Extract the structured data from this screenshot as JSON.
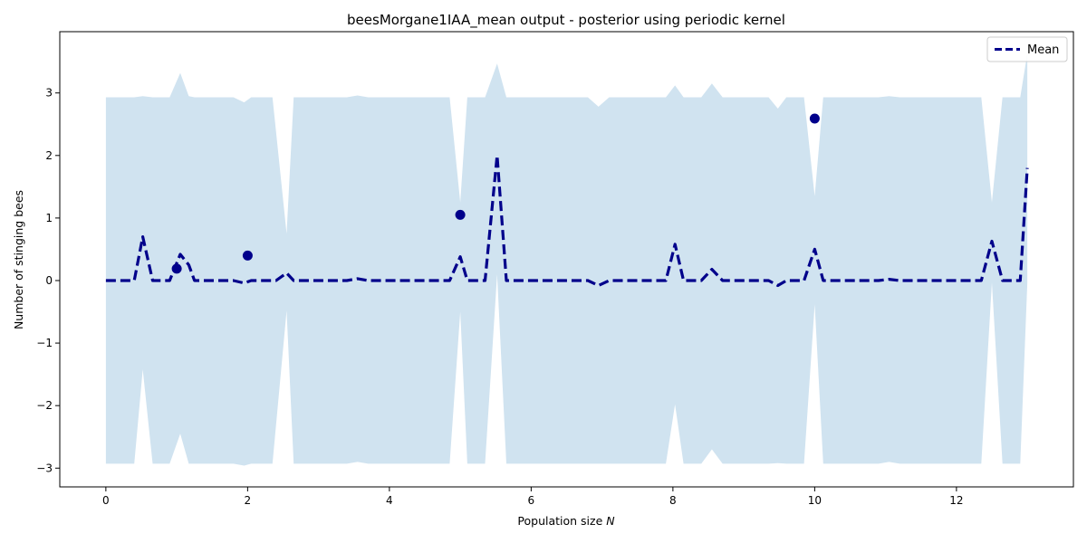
{
  "chart_data": {
    "type": "line",
    "title": "beesMorgane1IAA_mean output - posterior using periodic kernel",
    "xlabel_text": "Population size ",
    "xlabel_var": "N",
    "ylabel": "Number of stinging bees",
    "xlim": [
      -0.65,
      13.65
    ],
    "ylim": [
      -3.3,
      3.98
    ],
    "xticks": [
      0,
      2,
      4,
      6,
      8,
      10,
      12
    ],
    "yticks": [
      -3,
      -2,
      -1,
      0,
      1,
      2,
      3
    ],
    "grid": false,
    "legend_position": "top-right",
    "mean": {
      "name": "Mean",
      "color": "#00008b",
      "x": [
        0,
        0.4,
        0.52,
        0.66,
        0.9,
        1.05,
        1.17,
        1.25,
        1.8,
        1.95,
        2.05,
        2.4,
        2.55,
        2.65,
        3.4,
        3.55,
        3.7,
        4.85,
        5.0,
        5.1,
        5.35,
        5.52,
        5.65,
        6.8,
        6.95,
        7.1,
        7.9,
        8.03,
        8.15,
        8.4,
        8.55,
        8.7,
        9.35,
        9.48,
        9.6,
        9.85,
        10.0,
        10.12,
        10.9,
        11.05,
        11.2,
        12.35,
        12.5,
        12.65,
        12.9,
        13.0
      ],
      "y": [
        0,
        0,
        0.7,
        0,
        0,
        0.42,
        0.25,
        0,
        0,
        -0.04,
        0,
        0,
        0.12,
        0,
        0,
        0.03,
        0,
        0,
        0.38,
        0,
        0,
        2.0,
        0,
        0,
        -0.08,
        0,
        0,
        0.58,
        0,
        0,
        0.18,
        0,
        0,
        -0.08,
        0,
        0,
        0.5,
        0,
        0,
        0.02,
        0,
        0,
        0.63,
        0,
        0,
        1.8
      ]
    },
    "band": {
      "color": "#d0e3f0",
      "x": [
        0,
        0.4,
        0.52,
        0.66,
        0.9,
        1.05,
        1.17,
        1.25,
        1.8,
        1.95,
        2.05,
        2.35,
        2.55,
        2.65,
        3.4,
        3.55,
        3.7,
        4.85,
        5.0,
        5.1,
        5.35,
        5.52,
        5.65,
        6.8,
        6.95,
        7.1,
        7.9,
        8.03,
        8.15,
        8.4,
        8.55,
        8.7,
        9.35,
        9.48,
        9.6,
        9.85,
        10.0,
        10.12,
        10.9,
        11.05,
        11.2,
        12.35,
        12.5,
        12.65,
        12.9,
        13.0
      ],
      "upper": [
        2.93,
        2.93,
        2.95,
        2.93,
        2.93,
        3.32,
        2.95,
        2.93,
        2.93,
        2.85,
        2.93,
        2.93,
        0.75,
        2.93,
        2.93,
        2.96,
        2.93,
        2.93,
        1.25,
        2.93,
        2.93,
        3.47,
        2.93,
        2.93,
        2.78,
        2.93,
        2.93,
        3.12,
        2.93,
        2.93,
        3.15,
        2.93,
        2.93,
        2.75,
        2.93,
        2.93,
        1.35,
        2.93,
        2.93,
        2.95,
        2.93,
        2.93,
        1.25,
        2.93,
        2.93,
        3.63
      ],
      "lower": [
        -2.93,
        -2.93,
        -1.42,
        -2.93,
        -2.93,
        -2.45,
        -2.93,
        -2.93,
        -2.93,
        -2.96,
        -2.93,
        -2.93,
        -0.48,
        -2.93,
        -2.93,
        -2.9,
        -2.93,
        -2.93,
        -0.5,
        -2.93,
        -2.93,
        0.1,
        -2.93,
        -2.93,
        -2.93,
        -2.93,
        -2.93,
        -1.98,
        -2.93,
        -2.93,
        -2.7,
        -2.93,
        -2.93,
        -2.92,
        -2.93,
        -2.93,
        -0.38,
        -2.93,
        -2.93,
        -2.9,
        -2.93,
        -2.93,
        -0.03,
        -2.93,
        -2.93,
        -0.05
      ]
    },
    "observations": {
      "color": "#00008b",
      "x": [
        1.0,
        2.0,
        5.0,
        10.0
      ],
      "y": [
        0.19,
        0.4,
        1.05,
        2.59
      ]
    }
  }
}
